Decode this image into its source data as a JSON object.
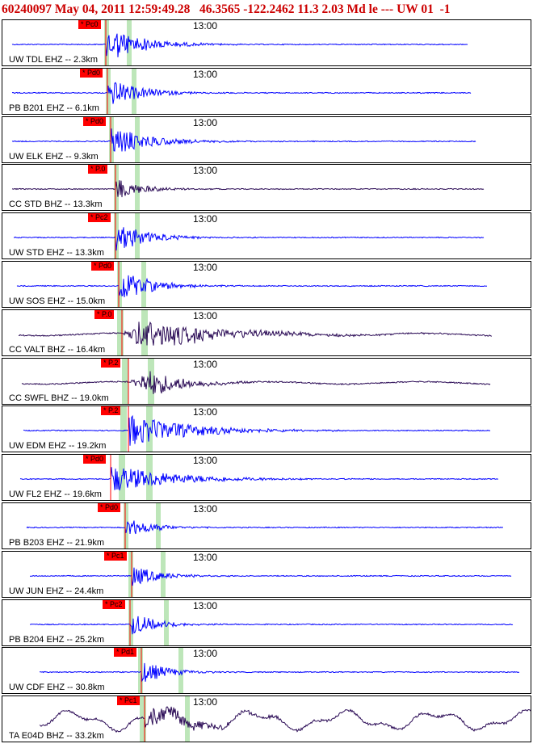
{
  "header": {
    "text": "60240097 May 04, 2011 12:59:49.28   46.3565 -122.2462 11.3 2.03 Md le --- UW 01  -1"
  },
  "colors": {
    "header": "#cc0000",
    "trace_blue": "#0000ff",
    "trace_dark": "#2a0a55",
    "pick": "#ff0000",
    "window": "#bde6b9"
  },
  "panels": [
    {
      "label": "UW TDL EHZ -- 2.3km",
      "time": "13:00",
      "pick": "* Pc0",
      "trace": "blue"
    },
    {
      "label": "PB B201 EHZ -- 6.1km",
      "time": "13:00",
      "pick": "* Pd0",
      "trace": "blue"
    },
    {
      "label": "UW ELK EHZ -- 9.3km",
      "time": "13:00",
      "pick": "* Pd0",
      "trace": "blue"
    },
    {
      "label": "CC STD BHZ -- 13.3km",
      "time": "13:00",
      "pick": "* P.0",
      "trace": "dark"
    },
    {
      "label": "UW STD EHZ -- 13.3km",
      "time": "13:00",
      "pick": "* Pc2",
      "trace": "blue"
    },
    {
      "label": "UW SOS EHZ -- 15.0km",
      "time": "13:00",
      "pick": "* Pd0",
      "trace": "blue"
    },
    {
      "label": "CC VALT BHZ -- 16.4km",
      "time": "13:00",
      "pick": "* P.0",
      "trace": "dark"
    },
    {
      "label": "CC SWFL BHZ -- 19.0km",
      "time": "13:00",
      "pick": "* P.2",
      "trace": "dark"
    },
    {
      "label": "UW EDM EHZ -- 19.2km",
      "time": "13:00",
      "pick": "* P.2",
      "trace": "blue"
    },
    {
      "label": "UW FL2 EHZ -- 19.6km",
      "time": "13:00",
      "pick": "* Pd0",
      "trace": "blue"
    },
    {
      "label": "PB B203 EHZ -- 21.9km",
      "time": "13:00",
      "pick": "* Pd0",
      "trace": "blue"
    },
    {
      "label": "UW JUN EHZ -- 24.4km",
      "time": "13:00",
      "pick": "* Pc1",
      "trace": "blue"
    },
    {
      "label": "PB B204 EHZ -- 25.2km",
      "time": "13:00",
      "pick": "* Pc2",
      "trace": "blue"
    },
    {
      "label": "UW CDF EHZ -- 30.8km",
      "time": "13:00",
      "pick": "* Pd1",
      "trace": "blue"
    },
    {
      "label": "TA E04D BHZ -- 33.2km",
      "time": "13:00",
      "pick": "* Pc1",
      "trace": "dark"
    }
  ]
}
